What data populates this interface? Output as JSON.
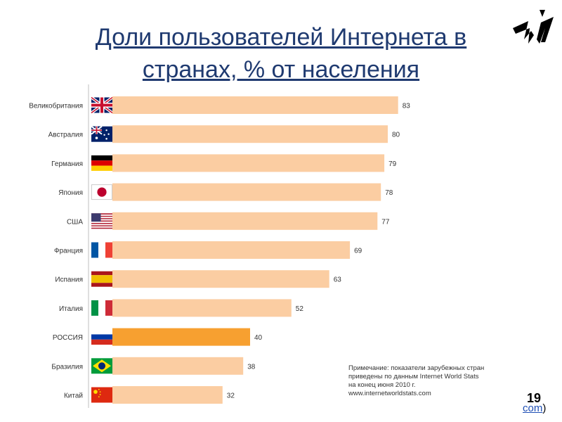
{
  "slide": {
    "title": "Доли пользователей Интернета в странах, % от населения",
    "page_number": "19",
    "link_text": "com",
    "link_suffix": ")"
  },
  "note": {
    "line1": "Примечание: показатели зарубежных стран",
    "line2": "приведены по данным Internet World Stats",
    "line3": "на конец июня 2010 г.",
    "line4": "www.internetworldstats.com"
  },
  "colors": {
    "bar": "#FBCDA2",
    "highlight": "#F7A030",
    "title": "#1F3A70",
    "axis": "#BFBFBF",
    "label": "#333333"
  },
  "chart_data": {
    "type": "bar",
    "orientation": "horizontal",
    "categories": [
      "Великобритания",
      "Австралия",
      "Германия",
      "Япония",
      "США",
      "Франция",
      "Испания",
      "Италия",
      "РОССИЯ",
      "Бразилия",
      "Китай"
    ],
    "values": [
      83,
      80,
      79,
      78,
      77,
      69,
      63,
      52,
      40,
      38,
      32
    ],
    "flags": [
      "uk-flag-icon",
      "australia-flag-icon",
      "germany-flag-icon",
      "japan-flag-icon",
      "usa-flag-icon",
      "france-flag-icon",
      "spain-flag-icon",
      "italy-flag-icon",
      "russia-flag-icon",
      "brazil-flag-icon",
      "china-flag-icon"
    ],
    "highlight_index": 8,
    "xlim": [
      0,
      100
    ],
    "grid": false,
    "legend": "none"
  }
}
